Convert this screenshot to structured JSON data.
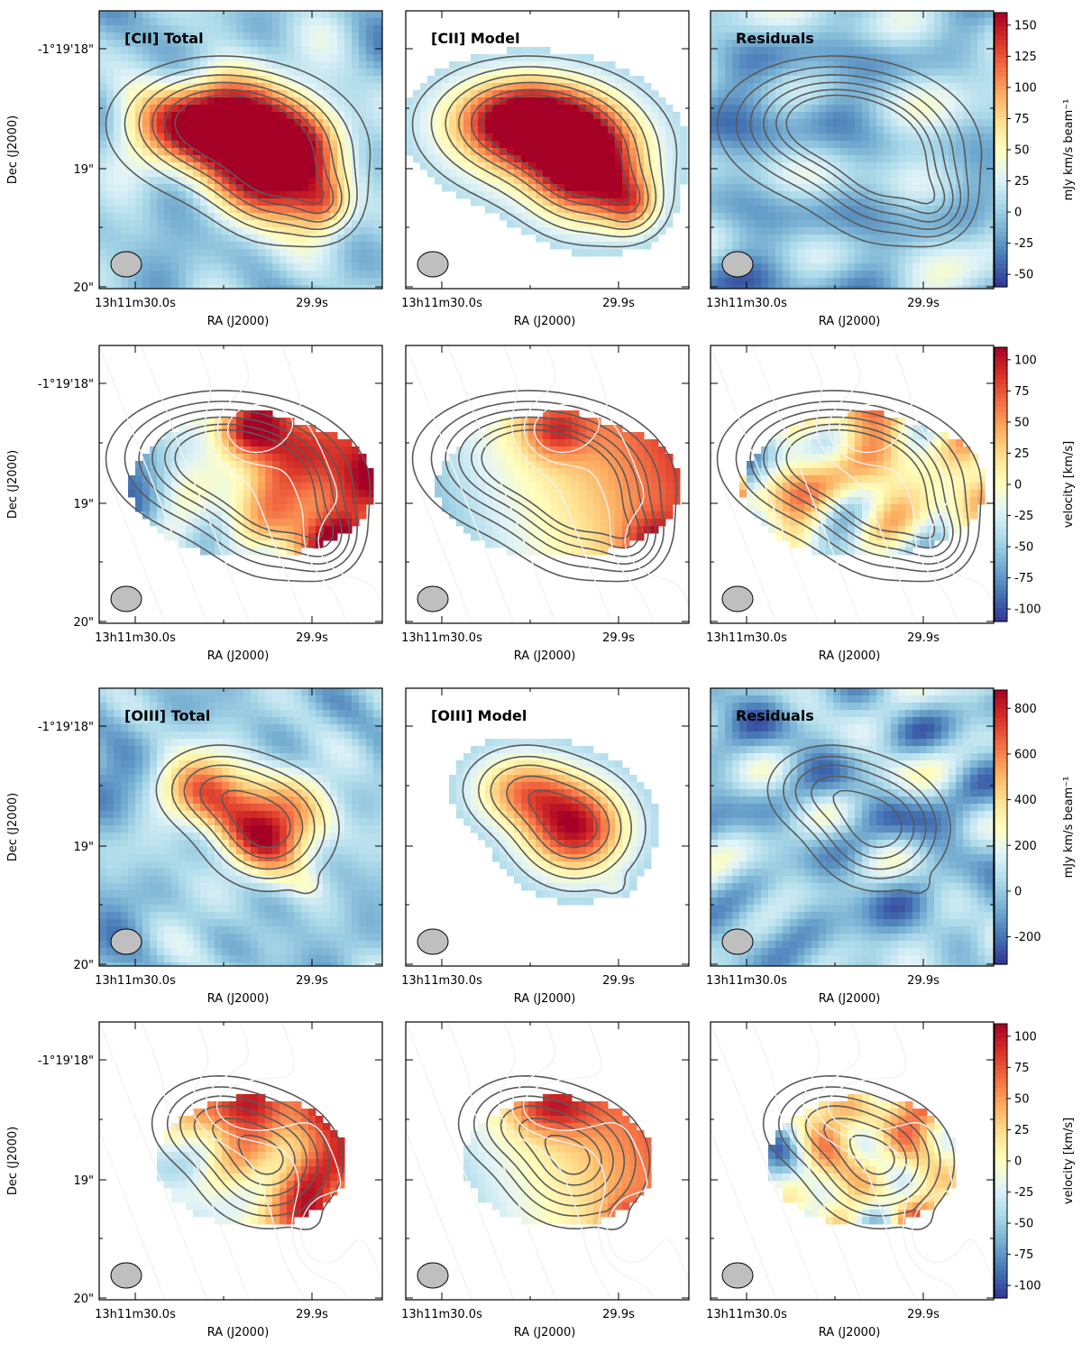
{
  "figure": {
    "colormap": "RdYlBu_r",
    "colors": {
      "high": "#a50026",
      "mid": "#ffffbf",
      "low": "#313695",
      "contour": "#5a5a5a",
      "contour_light": "#f2f2f2",
      "beam": "#bfbfbf"
    }
  },
  "chart_data": [
    {
      "type": "heatmap",
      "row": "CII intensity",
      "panels": [
        {
          "title": "[CII] Total",
          "map": "intensity",
          "component": "total"
        },
        {
          "title": "[CII] Model",
          "map": "intensity",
          "component": "model"
        },
        {
          "title": "Residuals",
          "map": "intensity",
          "component": "residual"
        }
      ],
      "xlabel": "RA (J2000)",
      "ylabel": "Dec (J2000)",
      "x_ticks": [
        "13h11m30.0s",
        "29.9s"
      ],
      "y_ticks": [
        "-1°19'18\"",
        "19\"",
        "20\""
      ],
      "colorbar_label": "mJy km/s beam⁻¹",
      "colorbar_ticks": [
        150,
        125,
        100,
        75,
        50,
        25,
        0,
        -25,
        -50
      ],
      "vmin": -60,
      "vmax": 160,
      "contours": "moment-0 emission"
    },
    {
      "type": "heatmap",
      "row": "CII velocity",
      "panels": [
        {
          "title": "",
          "map": "velocity",
          "component": "total"
        },
        {
          "title": "",
          "map": "velocity",
          "component": "model"
        },
        {
          "title": "",
          "map": "velocity",
          "component": "residual"
        }
      ],
      "xlabel": "RA (J2000)",
      "ylabel": "Dec (J2000)",
      "x_ticks": [
        "13h11m30.0s",
        "29.9s"
      ],
      "y_ticks": [
        "-1°19'18\"",
        "19\"",
        "20\""
      ],
      "colorbar_label": "velocity [km/s]",
      "colorbar_ticks": [
        100,
        75,
        50,
        25,
        0,
        -25,
        -50,
        -75,
        -100
      ],
      "vmin": -110,
      "vmax": 110,
      "contours": "moment-0 emission + velocity isocontours"
    },
    {
      "type": "heatmap",
      "row": "OIII intensity",
      "panels": [
        {
          "title": "[OIII] Total",
          "map": "intensity",
          "component": "total"
        },
        {
          "title": "[OIII] Model",
          "map": "intensity",
          "component": "model"
        },
        {
          "title": "Residuals",
          "map": "intensity",
          "component": "residual"
        }
      ],
      "xlabel": "RA (J2000)",
      "ylabel": "Dec (J2000)",
      "x_ticks": [
        "13h11m30.0s",
        "29.9s"
      ],
      "y_ticks": [
        "-1°19'18\"",
        "19\"",
        "20\""
      ],
      "colorbar_label": "mJy km/s beam⁻¹",
      "colorbar_ticks": [
        800,
        600,
        400,
        200,
        0,
        -200
      ],
      "vmin": -320,
      "vmax": 880,
      "contours": "moment-0 emission"
    },
    {
      "type": "heatmap",
      "row": "OIII velocity",
      "panels": [
        {
          "title": "",
          "map": "velocity",
          "component": "total"
        },
        {
          "title": "",
          "map": "velocity",
          "component": "model"
        },
        {
          "title": "",
          "map": "velocity",
          "component": "residual"
        }
      ],
      "xlabel": "RA (J2000)",
      "ylabel": "Dec (J2000)",
      "x_ticks": [
        "13h11m30.0s",
        "29.9s"
      ],
      "y_ticks": [
        "-1°19'18\"",
        "19\"",
        "20\""
      ],
      "colorbar_label": "velocity [km/s]",
      "colorbar_ticks": [
        100,
        75,
        50,
        25,
        0,
        -25,
        -50,
        -75,
        -100
      ],
      "vmin": -110,
      "vmax": 110,
      "contours": "moment-0 emission + velocity isocontours"
    }
  ]
}
